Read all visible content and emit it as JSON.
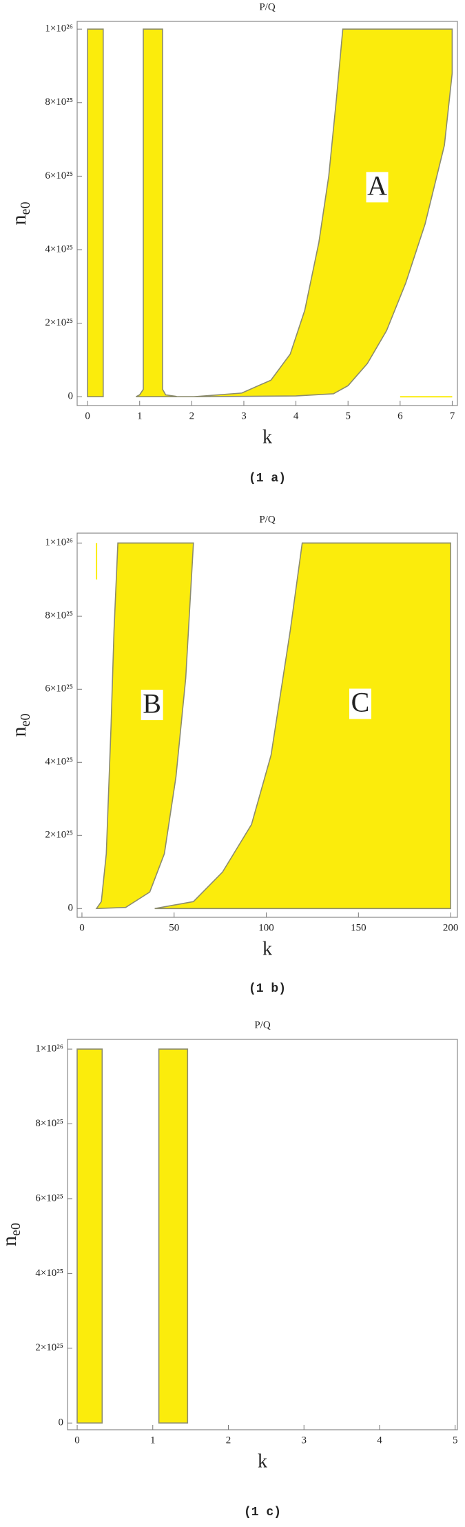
{
  "chart_data": [
    {
      "type": "region",
      "title": "P/Q",
      "xlabel": "k",
      "ylabel": "n",
      "ylabel_subscript": "e0",
      "caption": "(1 a)",
      "xlim": [
        -0.2,
        7.1
      ],
      "ylim": [
        -2.4e+24,
        1.021e+26
      ],
      "xticks": [
        0,
        1,
        2,
        3,
        4,
        5,
        6,
        7
      ],
      "yticks": [
        0,
        {
          "value": 2e+25,
          "label": "2×10²⁵"
        },
        {
          "value": 4e+25,
          "label": "4×10²⁵"
        },
        {
          "value": 6e+25,
          "label": "6×10²⁵"
        },
        {
          "value": 8e+25,
          "label": "8×10²⁵"
        },
        {
          "value": 1e+26,
          "label": "1×10²⁶"
        }
      ],
      "color": "#fbec0c",
      "regions": [
        {
          "x": [
            0,
            0.3,
            0.3,
            0
          ],
          "values": [
            0,
            0,
            1e+26,
            1e+26
          ]
        },
        {
          "x": [
            0.93,
            1.0,
            1.07,
            1.07,
            1.44,
            1.44,
            1.5,
            1.7,
            1.7
          ],
          "values": [
            0,
            5e+23,
            2e+24,
            1e+26,
            1e+26,
            2e+24,
            5e+23,
            1e+23,
            0
          ]
        },
        {
          "x": [
            1.7,
            2.04,
            2.96,
            3.52,
            3.89,
            4.17,
            4.44,
            4.63,
            4.78,
            4.9,
            7,
            7,
            6.85,
            6.48,
            6.11,
            5.74,
            5.37,
            5,
            4.72,
            4,
            3,
            2
          ],
          "values": [
            0,
            0,
            1e+24,
            4.5e+24,
            1.16e+25,
            2.35e+25,
            4.2e+25,
            6e+25,
            8.15e+25,
            1e+26,
            1e+26,
            8.8e+25,
            6.84e+25,
            4.7e+25,
            3.1e+25,
            1.8e+25,
            9e+24,
            3e+24,
            8e+23,
            2e+23,
            1e+23,
            0
          ]
        }
      ],
      "segments": [
        {
          "x": [
            6,
            7
          ],
          "values": [
            0,
            0
          ]
        }
      ],
      "annotations": [
        {
          "text": "A",
          "x": 5.56,
          "y": 5.7e+25
        }
      ]
    },
    {
      "type": "region",
      "title": "P/Q",
      "xlabel": "k",
      "ylabel": "n",
      "ylabel_subscript": "e0",
      "caption": "(1 b)",
      "xlim": [
        -2.6,
        203.7
      ],
      "ylim": [
        -2.4e+24,
        1.027e+26
      ],
      "xticks": [
        0,
        50,
        100,
        150,
        200
      ],
      "yticks": [
        0,
        {
          "value": 2e+25,
          "label": "2×10²⁵"
        },
        {
          "value": 4e+25,
          "label": "4×10²⁵"
        },
        {
          "value": 6e+25,
          "label": "6×10²⁵"
        },
        {
          "value": 8e+25,
          "label": "8×10²⁵"
        },
        {
          "value": 1e+26,
          "label": "1×10²⁶"
        }
      ],
      "color": "#fbec0c",
      "regions": [
        {
          "x": [
            7.9,
            10.5,
            13.2,
            15.8,
            17.4,
            19.5,
            60.5,
            56.3,
            51,
            44.7,
            36.8,
            23.7
          ],
          "values": [
            0,
            1.9e+24,
            1.5e+25,
            5e+25,
            7.6e+25,
            1e+26,
            1e+26,
            6.3e+25,
            3.6e+25,
            1.5e+25,
            4.5e+24,
            3e+23
          ]
        },
        {
          "x": [
            39.5,
            60.5,
            76.3,
            92,
            102.6,
            113,
            119.5,
            200,
            200
          ],
          "values": [
            0,
            1.9e+24,
            1e+25,
            2.3e+25,
            4.2e+25,
            7.6e+25,
            1e+26,
            1e+26,
            0
          ]
        }
      ],
      "segments": [
        {
          "x": [
            7.9,
            7.9
          ],
          "values": [
            9e+25,
            1e+26
          ]
        }
      ],
      "annotations": [
        {
          "text": "B",
          "x": 38,
          "y": 5.57e+25
        },
        {
          "text": "C",
          "x": 151,
          "y": 5.6e+25
        }
      ]
    },
    {
      "type": "region",
      "title": "P/Q",
      "xlabel": "k",
      "ylabel": "n",
      "ylabel_subscript": "e0",
      "caption": "(1 c)",
      "xlim": [
        -0.128,
        5.03
      ],
      "ylim": [
        -1.8e+24,
        1.026e+26
      ],
      "xticks": [
        0,
        1,
        2,
        3,
        4,
        5
      ],
      "yticks": [
        0,
        {
          "value": 2e+25,
          "label": "2×10²⁵"
        },
        {
          "value": 4e+25,
          "label": "4×10²⁵"
        },
        {
          "value": 6e+25,
          "label": "6×10²⁵"
        },
        {
          "value": 8e+25,
          "label": "8×10²⁵"
        },
        {
          "value": 1e+26,
          "label": "1×10²⁶"
        }
      ],
      "color": "#fbec0c",
      "regions": [
        {
          "x": [
            0,
            0.33,
            0.33,
            0
          ],
          "values": [
            0,
            0,
            1e+26,
            1e+26
          ]
        },
        {
          "x": [
            1.08,
            1.46,
            1.46,
            1.08
          ],
          "values": [
            0,
            0,
            1e+26,
            1e+26
          ]
        }
      ],
      "segments": [],
      "annotations": []
    }
  ]
}
